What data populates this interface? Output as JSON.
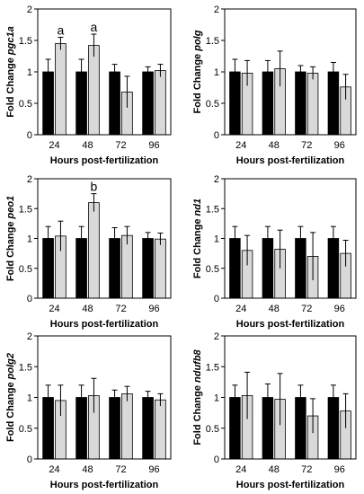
{
  "colors": {
    "control": "#000000",
    "treated": "#d9d9d9"
  },
  "chart_data": [
    {
      "type": "bar",
      "panel": "top-left",
      "ylabel_prefix": "Fold Change",
      "gene": "pgc1a",
      "xlabel": "Hours post-fertilization",
      "categories": [
        "24",
        "48",
        "72",
        "96"
      ],
      "ylim": [
        0,
        2
      ],
      "yticks": [
        "0",
        "0.5",
        "1",
        "1.5",
        "2"
      ],
      "series": [
        {
          "values": [
            1.0,
            1.0,
            1.0,
            1.0
          ],
          "errors": [
            0.2,
            0.2,
            0.12,
            0.08
          ]
        },
        {
          "values": [
            1.45,
            1.42,
            0.68,
            1.02
          ],
          "errors": [
            0.1,
            0.18,
            0.25,
            0.1
          ]
        }
      ],
      "annotations": [
        {
          "category": "24",
          "text": "a"
        },
        {
          "category": "48",
          "text": "a"
        }
      ]
    },
    {
      "type": "bar",
      "panel": "top-right",
      "ylabel_prefix": "Fold Change",
      "gene": "polg",
      "xlabel": "Hours post-fertilization",
      "categories": [
        "24",
        "48",
        "72",
        "96"
      ],
      "ylim": [
        0,
        2
      ],
      "yticks": [
        "0",
        "0.5",
        "1",
        "1.5",
        "2"
      ],
      "series": [
        {
          "values": [
            1.0,
            1.0,
            1.0,
            1.0
          ],
          "errors": [
            0.2,
            0.18,
            0.1,
            0.15
          ]
        },
        {
          "values": [
            0.98,
            1.05,
            0.98,
            0.76
          ],
          "errors": [
            0.2,
            0.28,
            0.1,
            0.2
          ]
        }
      ],
      "annotations": []
    },
    {
      "type": "bar",
      "panel": "middle-left",
      "ylabel_prefix": "Fold Change",
      "gene": "peo1",
      "xlabel": "Hours post-fertilization",
      "categories": [
        "24",
        "48",
        "72",
        "96"
      ],
      "ylim": [
        0,
        2
      ],
      "yticks": [
        "0",
        "0.5",
        "1",
        "1.5",
        "2"
      ],
      "series": [
        {
          "values": [
            1.0,
            1.0,
            1.0,
            1.0
          ],
          "errors": [
            0.2,
            0.2,
            0.18,
            0.1
          ]
        },
        {
          "values": [
            1.04,
            1.6,
            1.05,
            0.99
          ],
          "errors": [
            0.25,
            0.15,
            0.15,
            0.1
          ]
        }
      ],
      "annotations": [
        {
          "category": "48",
          "text": "b"
        }
      ]
    },
    {
      "type": "bar",
      "panel": "middle-right",
      "ylabel_prefix": "Fold Change",
      "gene": "nd1",
      "xlabel": "Hours post-fertilization",
      "categories": [
        "24",
        "48",
        "72",
        "96"
      ],
      "ylim": [
        0,
        2
      ],
      "yticks": [
        "0",
        "0.5",
        "1",
        "1.5",
        "2"
      ],
      "series": [
        {
          "values": [
            1.0,
            1.0,
            1.0,
            1.0
          ],
          "errors": [
            0.2,
            0.2,
            0.2,
            0.2
          ]
        },
        {
          "values": [
            0.8,
            0.82,
            0.7,
            0.75
          ],
          "errors": [
            0.25,
            0.32,
            0.4,
            0.22
          ]
        }
      ],
      "annotations": []
    },
    {
      "type": "bar",
      "panel": "bottom-left",
      "ylabel_prefix": "Fold Change",
      "gene": "polg2",
      "xlabel": "Hours post-fertilization",
      "categories": [
        "24",
        "48",
        "72",
        "96"
      ],
      "ylim": [
        0,
        2
      ],
      "yticks": [
        "0",
        "0.5",
        "1",
        "1.5",
        "2"
      ],
      "series": [
        {
          "values": [
            1.0,
            1.0,
            1.0,
            1.0
          ],
          "errors": [
            0.2,
            0.2,
            0.12,
            0.1
          ]
        },
        {
          "values": [
            0.95,
            1.03,
            1.06,
            0.96
          ],
          "errors": [
            0.25,
            0.28,
            0.12,
            0.1
          ]
        }
      ],
      "annotations": []
    },
    {
      "type": "bar",
      "panel": "bottom-right",
      "ylabel_prefix": "Fold Change",
      "gene": "ndufb8",
      "xlabel": "Hours post-fertilization",
      "categories": [
        "24",
        "48",
        "72",
        "96"
      ],
      "ylim": [
        0,
        2
      ],
      "yticks": [
        "0",
        "0.5",
        "1",
        "1.5",
        "2"
      ],
      "series": [
        {
          "values": [
            1.0,
            1.0,
            1.0,
            1.0
          ],
          "errors": [
            0.2,
            0.22,
            0.2,
            0.2
          ]
        },
        {
          "values": [
            1.03,
            0.97,
            0.7,
            0.78
          ],
          "errors": [
            0.38,
            0.42,
            0.28,
            0.28
          ]
        }
      ],
      "annotations": []
    }
  ]
}
